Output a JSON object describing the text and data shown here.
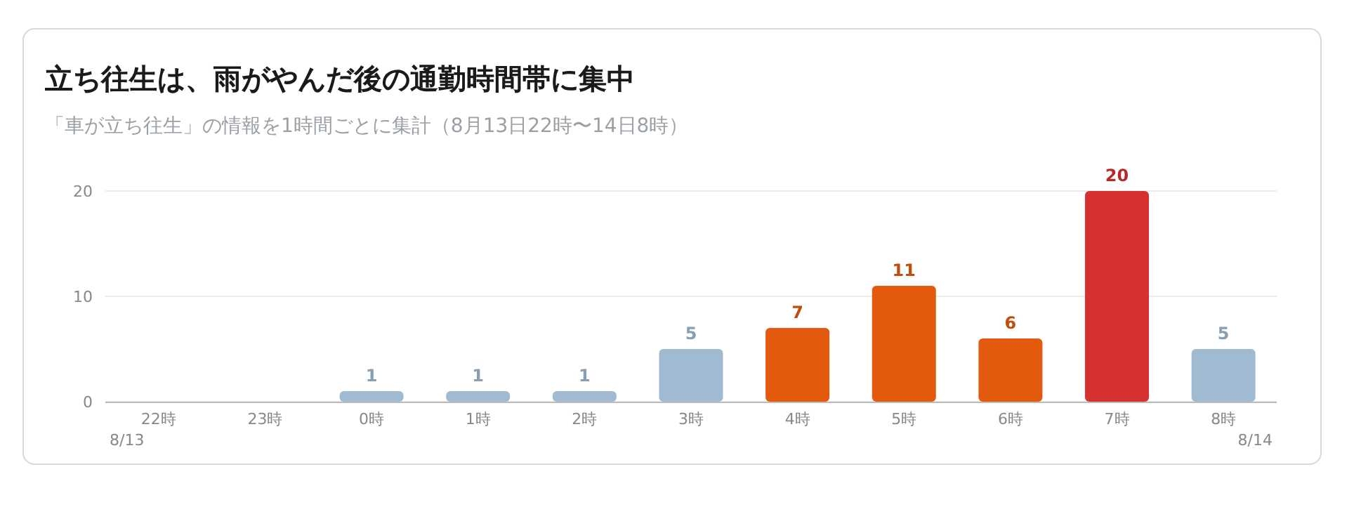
{
  "chart_data": {
    "type": "bar",
    "title": "立ち往生は、雨がやんだ後の通勤時間帯に集中",
    "subtitle": "「車が立ち往生」の情報を1時間ごとに集計（8月13日22時〜14日8時）",
    "categories": [
      "22時",
      "23時",
      "0時",
      "1時",
      "2時",
      "3時",
      "4時",
      "5時",
      "6時",
      "7時",
      "8時"
    ],
    "values": [
      0,
      0,
      1,
      1,
      1,
      5,
      7,
      11,
      6,
      20,
      5
    ],
    "colors": [
      "#a0bad2",
      "#a0bad2",
      "#a0bad2",
      "#a0bad2",
      "#a0bad2",
      "#a0bad2",
      "#e35a0e",
      "#e35a0e",
      "#e35a0e",
      "#d63031",
      "#a0bad2"
    ],
    "value_labels": [
      null,
      null,
      "1",
      "1",
      "1",
      "5",
      "7",
      "11",
      "6",
      "20",
      "5"
    ],
    "ylim": [
      0,
      20
    ],
    "yticks": [
      0,
      10,
      20
    ],
    "grid": "y",
    "annotations": [
      "8/13",
      "8/14"
    ]
  }
}
